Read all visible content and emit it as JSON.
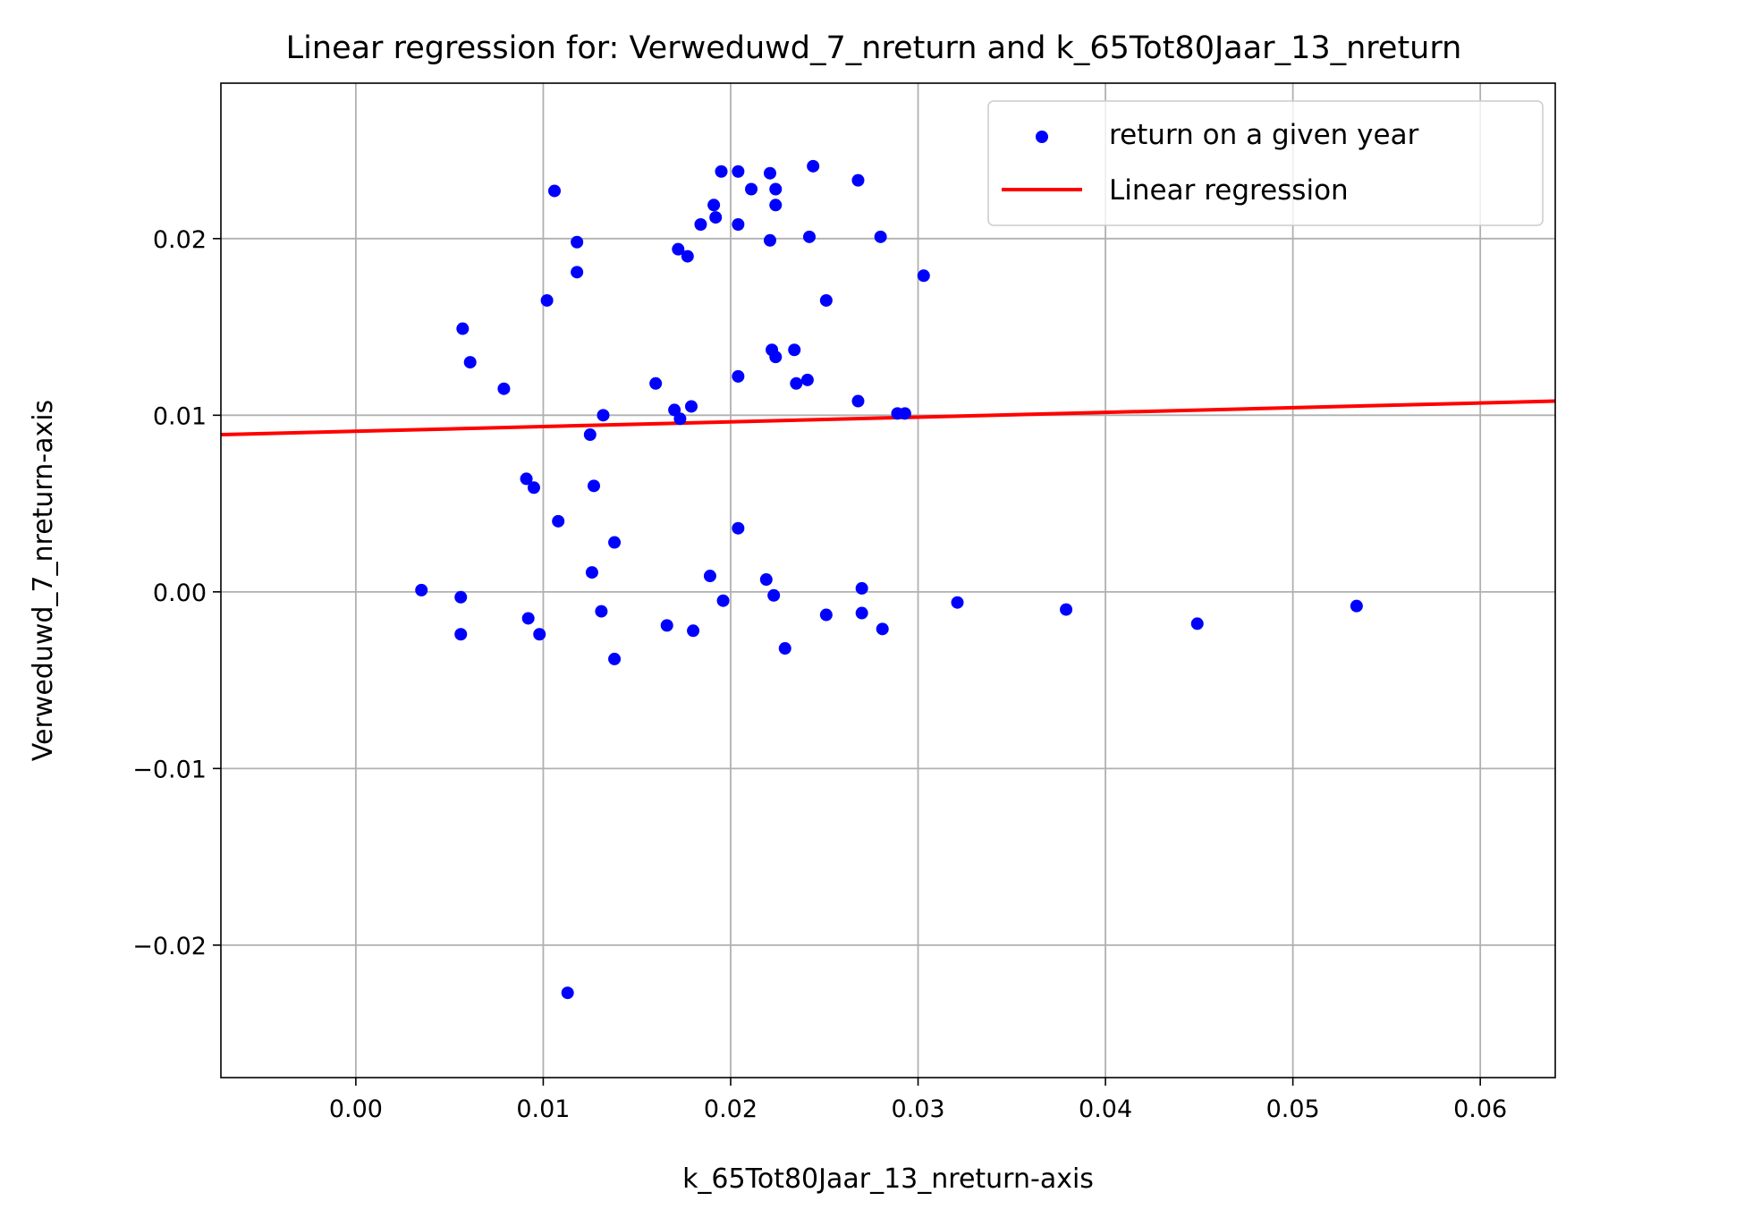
{
  "chart_data": {
    "type": "scatter",
    "title": "Linear regression for: Verweduwd_7_nreturn and k_65Tot80Jaar_13_nreturn",
    "xlabel": "k_65Tot80Jaar_13_nreturn-axis",
    "ylabel": "Verweduwd_7_nreturn-axis",
    "xlim": [
      -0.0072,
      0.064
    ],
    "ylim": [
      -0.0275,
      0.0288
    ],
    "xticks": [
      0.0,
      0.01,
      0.02,
      0.03,
      0.04,
      0.05,
      0.06
    ],
    "xtick_labels": [
      "0.00",
      "0.01",
      "0.02",
      "0.03",
      "0.04",
      "0.05",
      "0.06"
    ],
    "yticks": [
      -0.02,
      -0.01,
      0.0,
      0.01,
      0.02
    ],
    "ytick_labels": [
      "−0.02",
      "−0.01",
      "0.00",
      "0.01",
      "0.02"
    ],
    "grid": true,
    "legend_position": "top-right",
    "colors": {
      "points": "#0000ff",
      "line": "#ff0000",
      "grid": "#b0b0b0"
    },
    "series": [
      {
        "name": "return on a given year",
        "kind": "scatter",
        "points": [
          [
            0.0035,
            0.0001
          ],
          [
            0.0056,
            -0.0003
          ],
          [
            0.0056,
            -0.0024
          ],
          [
            0.0057,
            0.0149
          ],
          [
            0.0061,
            0.013
          ],
          [
            0.0079,
            0.0115
          ],
          [
            0.0091,
            0.0064
          ],
          [
            0.0092,
            -0.0015
          ],
          [
            0.0095,
            0.0059
          ],
          [
            0.0098,
            -0.0024
          ],
          [
            0.0102,
            0.0165
          ],
          [
            0.0106,
            0.0227
          ],
          [
            0.0108,
            0.004
          ],
          [
            0.0113,
            -0.0227
          ],
          [
            0.0118,
            0.0198
          ],
          [
            0.0118,
            0.0181
          ],
          [
            0.0125,
            0.0089
          ],
          [
            0.0126,
            0.0011
          ],
          [
            0.0127,
            0.006
          ],
          [
            0.0131,
            -0.0011
          ],
          [
            0.0132,
            0.01
          ],
          [
            0.0138,
            -0.0038
          ],
          [
            0.0138,
            0.0028
          ],
          [
            0.016,
            0.0118
          ],
          [
            0.0166,
            -0.0019
          ],
          [
            0.017,
            0.0103
          ],
          [
            0.0172,
            0.0194
          ],
          [
            0.0173,
            0.0098
          ],
          [
            0.0177,
            0.019
          ],
          [
            0.0179,
            0.0105
          ],
          [
            0.018,
            -0.0022
          ],
          [
            0.0184,
            0.0208
          ],
          [
            0.0189,
            0.0009
          ],
          [
            0.0191,
            0.0219
          ],
          [
            0.0192,
            0.0212
          ],
          [
            0.0195,
            0.0238
          ],
          [
            0.0196,
            -0.0005
          ],
          [
            0.0204,
            0.0238
          ],
          [
            0.0204,
            0.0208
          ],
          [
            0.0204,
            0.0122
          ],
          [
            0.0204,
            0.0036
          ],
          [
            0.0211,
            0.0228
          ],
          [
            0.0219,
            0.0007
          ],
          [
            0.0221,
            0.0237
          ],
          [
            0.0221,
            0.0199
          ],
          [
            0.0222,
            0.0137
          ],
          [
            0.0223,
            -0.0002
          ],
          [
            0.0224,
            0.0228
          ],
          [
            0.0224,
            0.0219
          ],
          [
            0.0224,
            0.0133
          ],
          [
            0.0229,
            -0.0032
          ],
          [
            0.0234,
            0.0137
          ],
          [
            0.0235,
            0.0118
          ],
          [
            0.0241,
            0.012
          ],
          [
            0.0242,
            0.0201
          ],
          [
            0.0244,
            0.0241
          ],
          [
            0.0251,
            0.0165
          ],
          [
            0.0251,
            -0.0013
          ],
          [
            0.0268,
            0.0233
          ],
          [
            0.0268,
            0.0108
          ],
          [
            0.027,
            0.0002
          ],
          [
            0.027,
            -0.0012
          ],
          [
            0.028,
            0.0201
          ],
          [
            0.0281,
            -0.0021
          ],
          [
            0.0289,
            0.0101
          ],
          [
            0.0293,
            0.0101
          ],
          [
            0.0303,
            0.0179
          ],
          [
            0.0321,
            -0.0006
          ],
          [
            0.0379,
            -0.001
          ],
          [
            0.0449,
            -0.0018
          ],
          [
            0.0534,
            -0.0008
          ]
        ]
      },
      {
        "name": "Linear regression",
        "kind": "line",
        "points": [
          [
            -0.0072,
            0.0089
          ],
          [
            0.064,
            0.0108
          ]
        ]
      }
    ]
  }
}
